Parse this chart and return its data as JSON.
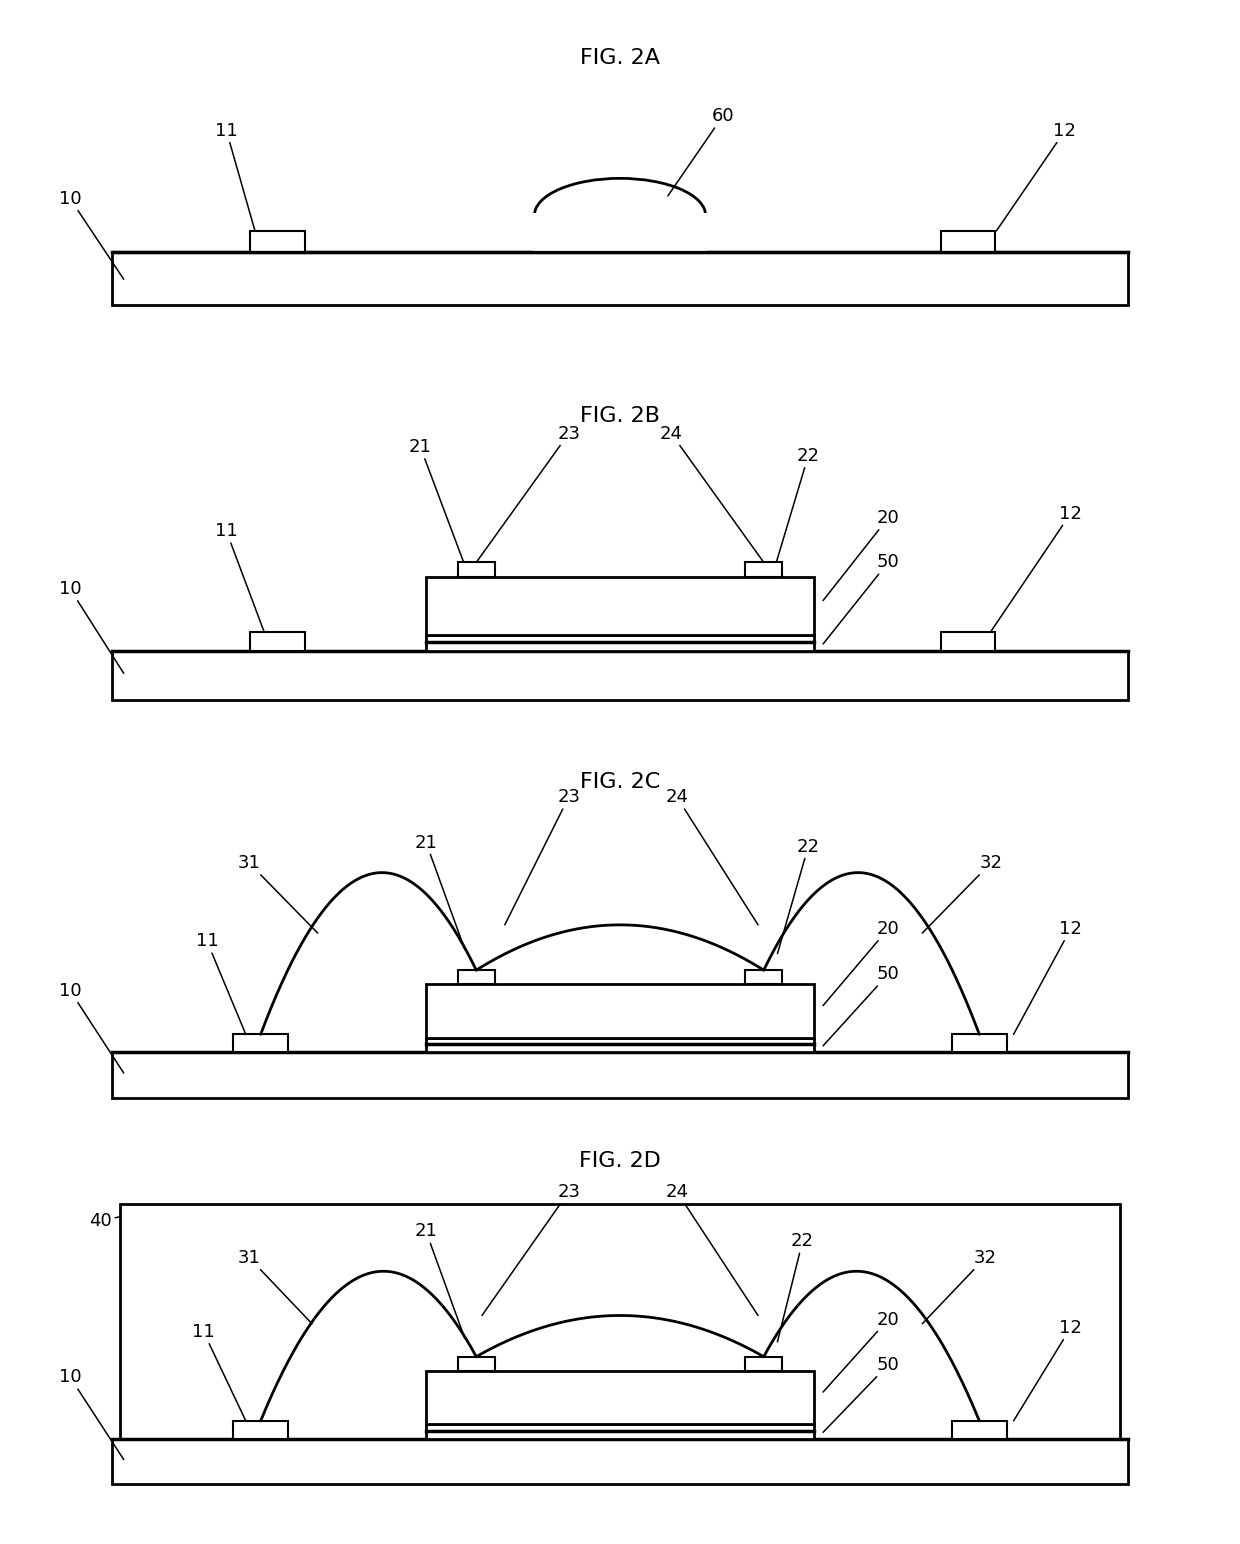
{
  "bg_color": "#ffffff",
  "line_color": "#000000",
  "figures": [
    "FIG. 2A",
    "FIG. 2B",
    "FIG. 2C",
    "FIG. 2D"
  ],
  "fig_title_fontsize": 16,
  "label_fontsize": 13,
  "lw_main": 2.0,
  "lw_thin": 1.5,
  "pad_fc": "#e8e8e8",
  "substrate_fc": "#ffffff",
  "body_fc": "#ffffff",
  "base_stripe_fc": "#000000",
  "elec_fc": "#1a1a1a"
}
